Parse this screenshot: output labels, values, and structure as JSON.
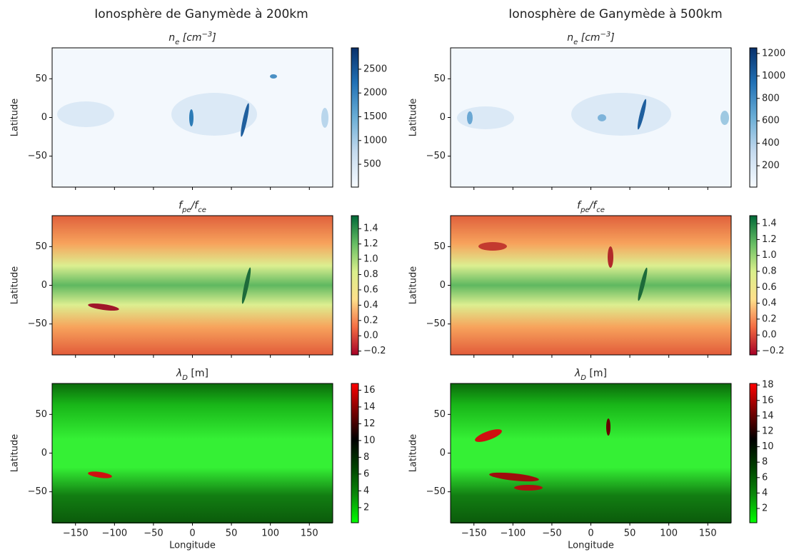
{
  "figure_titles": [
    "Ionosphère de Ganymède à 200km",
    "Ionosphère de Ganymède à 500km"
  ],
  "chart_data": [
    {
      "type": "heatmap",
      "title": [
        {
          "text": "n",
          "italic": true
        },
        {
          "text": "e",
          "italic": true,
          "shift": "sub"
        },
        {
          "text": " [cm",
          "italic": true
        },
        {
          "text": "−3",
          "italic": true,
          "shift": "super"
        },
        {
          "text": "]",
          "italic": true
        }
      ],
      "ylabel": "Latitude",
      "xlim": [
        -180,
        180
      ],
      "ylim": [
        -90,
        90
      ],
      "xticks": [
        {
          "value": -150,
          "label": "−150"
        },
        {
          "value": -100,
          "label": "−100"
        },
        {
          "value": -50,
          "label": "−50"
        },
        0,
        50,
        100,
        150
      ],
      "yticks": [
        {
          "value": -50,
          "label": "−50"
        },
        0,
        50
      ],
      "show_xticklabels": false,
      "colorbar": {
        "lim": [
          20,
          2950
        ],
        "ticks": [
          500,
          1000,
          1500,
          2000,
          2500
        ],
        "colormap": [
          "#f7fbff",
          "#c6dbef",
          "#6baed6",
          "#2171b5",
          "#08306b"
        ]
      }
    },
    {
      "type": "heatmap",
      "title": [
        {
          "text": "n",
          "italic": true
        },
        {
          "text": "e",
          "italic": true,
          "shift": "sub"
        },
        {
          "text": " [cm",
          "italic": true
        },
        {
          "text": "−3",
          "italic": true,
          "shift": "super"
        },
        {
          "text": "]",
          "italic": true
        }
      ],
      "ylabel": "Latitude",
      "xlim": [
        -180,
        180
      ],
      "ylim": [
        -90,
        90
      ],
      "xticks": [
        {
          "value": -150,
          "label": "−150"
        },
        {
          "value": -100,
          "label": "−100"
        },
        {
          "value": -50,
          "label": "−50"
        },
        0,
        50,
        100,
        150
      ],
      "yticks": [
        {
          "value": -50,
          "label": "−50"
        },
        0,
        50
      ],
      "show_xticklabels": false,
      "colorbar": {
        "lim": [
          10,
          1250
        ],
        "ticks": [
          200,
          400,
          600,
          800,
          1000,
          1200
        ],
        "colormap": [
          "#f7fbff",
          "#c6dbef",
          "#6baed6",
          "#2171b5",
          "#08306b"
        ]
      }
    },
    {
      "type": "heatmap",
      "title": [
        {
          "text": "f",
          "italic": true
        },
        {
          "text": "pe",
          "italic": true,
          "shift": "sub"
        },
        {
          "text": "/f",
          "italic": true
        },
        {
          "text": "ce",
          "italic": true,
          "shift": "sub"
        }
      ],
      "ylabel": "Latitude",
      "xlim": [
        -180,
        180
      ],
      "ylim": [
        -90,
        90
      ],
      "xticks": [
        {
          "value": -150,
          "label": "−150"
        },
        {
          "value": -100,
          "label": "−100"
        },
        {
          "value": -50,
          "label": "−50"
        },
        0,
        50,
        100,
        150
      ],
      "yticks": [
        {
          "value": -50,
          "label": "−50"
        },
        0,
        50
      ],
      "show_xticklabels": false,
      "colorbar": {
        "lim": [
          -0.25,
          1.57
        ],
        "ticks": [
          {
            "value": -0.2,
            "label": "−0.2"
          },
          0.0,
          0.2,
          0.4,
          0.6,
          0.8,
          1.0,
          1.2,
          1.4
        ],
        "tick_labels": [
          "−0.2",
          "0.0",
          "0.2",
          "0.4",
          "0.6",
          "0.8",
          "1.0",
          "1.2",
          "1.4"
        ],
        "colormap": [
          "#a50026",
          "#f46d43",
          "#fee08b",
          "#d9ef8b",
          "#66bd63",
          "#006837"
        ]
      }
    },
    {
      "type": "heatmap",
      "title": [
        {
          "text": "f",
          "italic": true
        },
        {
          "text": "pe",
          "italic": true,
          "shift": "sub"
        },
        {
          "text": "/f",
          "italic": true
        },
        {
          "text": "ce",
          "italic": true,
          "shift": "sub"
        }
      ],
      "ylabel": "Latitude",
      "xlim": [
        -180,
        180
      ],
      "ylim": [
        -90,
        90
      ],
      "xticks": [
        {
          "value": -150,
          "label": "−150"
        },
        {
          "value": -100,
          "label": "−100"
        },
        {
          "value": -50,
          "label": "−50"
        },
        0,
        50,
        100,
        150
      ],
      "yticks": [
        {
          "value": -50,
          "label": "−50"
        },
        0,
        50
      ],
      "show_xticklabels": false,
      "colorbar": {
        "lim": [
          -0.25,
          1.5
        ],
        "ticks": [
          {
            "value": -0.2,
            "label": "−0.2"
          },
          0.0,
          0.2,
          0.4,
          0.6,
          0.8,
          1.0,
          1.2,
          1.4
        ],
        "tick_labels": [
          "−0.2",
          "0.0",
          "0.2",
          "0.4",
          "0.6",
          "0.8",
          "1.0",
          "1.2",
          "1.4"
        ],
        "colormap": [
          "#a50026",
          "#f46d43",
          "#fee08b",
          "#d9ef8b",
          "#66bd63",
          "#006837"
        ]
      }
    },
    {
      "type": "heatmap",
      "title": [
        {
          "text": "λ",
          "italic": true
        },
        {
          "text": "D",
          "italic": true,
          "shift": "sub"
        },
        {
          "text": " [m]",
          "italic": false
        }
      ],
      "ylabel": "Latitude",
      "xlabel": "Longitude",
      "xlim": [
        -180,
        180
      ],
      "ylim": [
        -90,
        90
      ],
      "xticks": [
        {
          "value": -150,
          "label": "−150"
        },
        {
          "value": -100,
          "label": "−100"
        },
        {
          "value": -50,
          "label": "−50"
        },
        0,
        50,
        100,
        150
      ],
      "yticks": [
        {
          "value": -50,
          "label": "−50"
        },
        0,
        50
      ],
      "show_xticklabels": true,
      "colorbar": {
        "lim": [
          0.2,
          16.8
        ],
        "ticks": [
          2,
          4,
          6,
          8,
          10,
          12,
          14,
          16
        ],
        "colormap": [
          "#00ff00",
          "#0a8a0a",
          "#004000",
          "#000000",
          "#7a0000",
          "#ff0000"
        ]
      }
    },
    {
      "type": "heatmap",
      "title": [
        {
          "text": "λ",
          "italic": true
        },
        {
          "text": "D",
          "italic": true,
          "shift": "sub"
        },
        {
          "text": " [m]",
          "italic": false
        }
      ],
      "ylabel": "Latitude",
      "xlabel": "Longitude",
      "xlim": [
        -180,
        180
      ],
      "ylim": [
        -90,
        90
      ],
      "xticks": [
        {
          "value": -150,
          "label": "−150"
        },
        {
          "value": -100,
          "label": "−100"
        },
        {
          "value": -50,
          "label": "−50"
        },
        0,
        50,
        100,
        150
      ],
      "yticks": [
        {
          "value": -50,
          "label": "−50"
        },
        0,
        50
      ],
      "show_xticklabels": true,
      "colorbar": {
        "lim": [
          0.15,
          18.2
        ],
        "ticks": [
          2,
          4,
          6,
          8,
          10,
          12,
          14,
          16,
          18
        ],
        "colormap": [
          "#00ff00",
          "#0a8a0a",
          "#004000",
          "#000000",
          "#7a0000",
          "#ff0000"
        ]
      }
    }
  ]
}
